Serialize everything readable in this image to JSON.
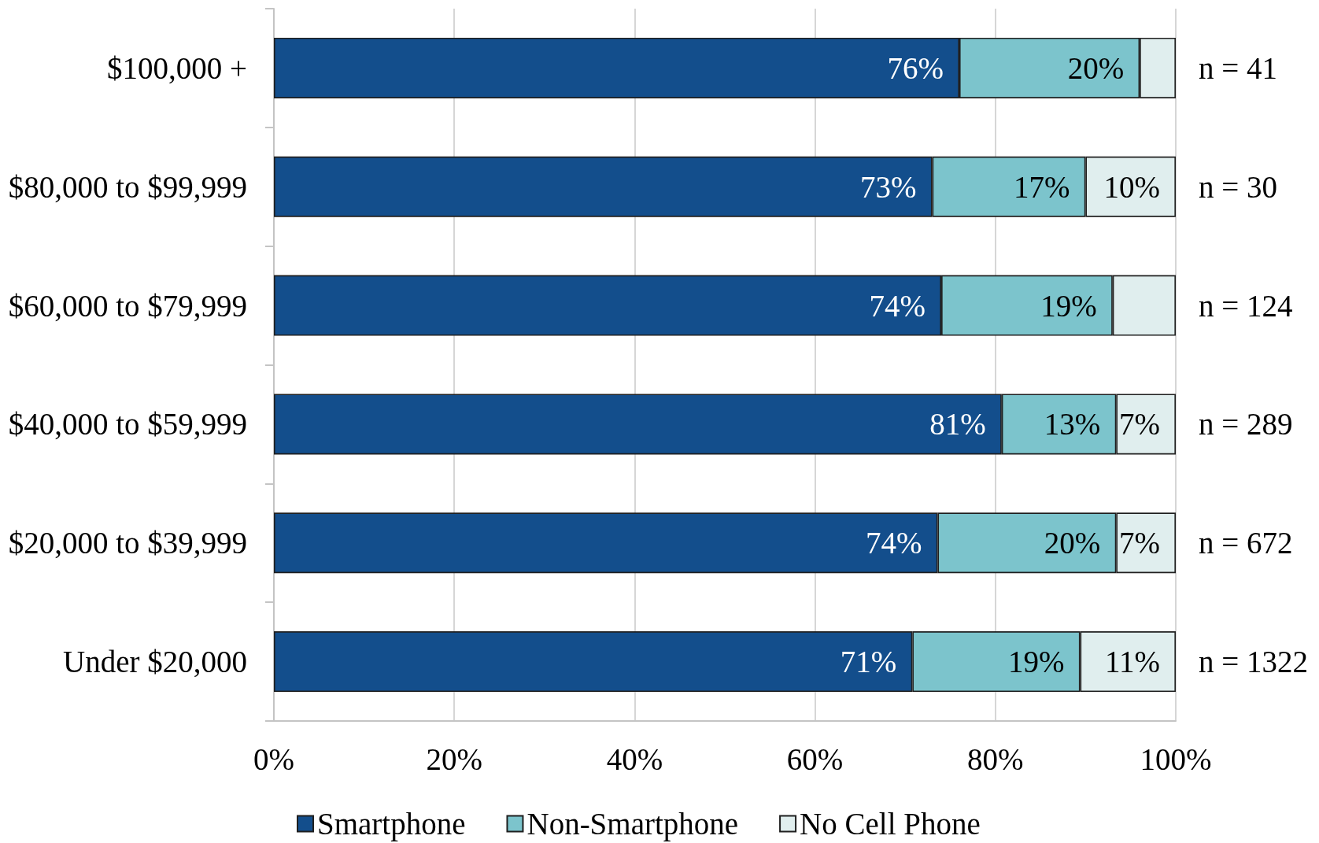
{
  "chart_data": {
    "type": "bar",
    "orientation": "horizontal",
    "stacked": true,
    "categories": [
      "$100,000 +",
      "$80,000 to $99,999",
      "$60,000 to $79,999",
      "$40,000 to $59,999",
      "$20,000 to $39,999",
      "Under $20,000"
    ],
    "series": [
      {
        "name": "Smartphone",
        "color": "#134e8c",
        "values": [
          76,
          73,
          74,
          80.7,
          73.6,
          70.8
        ],
        "value_labels": [
          "76%",
          "73%",
          "74%",
          "81%",
          "74%",
          "71%"
        ]
      },
      {
        "name": "Non-Smartphone",
        "color": "#7cc4cc",
        "values": [
          20,
          17,
          19,
          12.7,
          19.8,
          18.6
        ],
        "value_labels": [
          "20%",
          "17%",
          "19%",
          "13%",
          "20%",
          "19%"
        ]
      },
      {
        "name": "No Cell Phone",
        "color": "#e0eeee",
        "values": [
          4,
          10,
          7,
          6.6,
          6.6,
          10.6
        ],
        "value_labels": [
          null,
          "10%",
          null,
          "7%",
          "7%",
          "11%"
        ]
      }
    ],
    "xlim": [
      0,
      100
    ],
    "xticks": [
      {
        "value": 0,
        "label": "0%"
      },
      {
        "value": 20,
        "label": "20%"
      },
      {
        "value": 40,
        "label": "40%"
      },
      {
        "value": 60,
        "label": "60%"
      },
      {
        "value": 80,
        "label": "80%"
      },
      {
        "value": 100,
        "label": "100%"
      }
    ],
    "annotations": [
      "n = 41",
      "n = 30",
      "n = 124",
      "n = 289",
      "n = 672",
      "n = 1322"
    ],
    "grid": "x",
    "legend": "bottom"
  }
}
